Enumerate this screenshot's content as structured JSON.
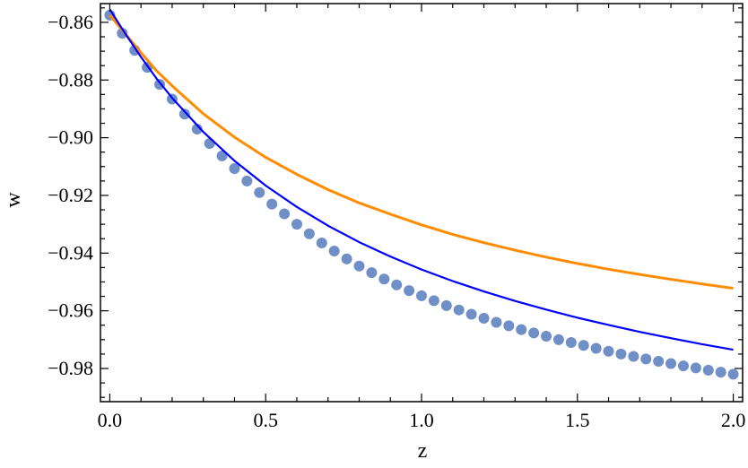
{
  "chart_data": {
    "type": "scatter",
    "xlabel": "z",
    "ylabel": "w",
    "xlim": [
      -0.03,
      2.03
    ],
    "ylim": [
      -0.9915,
      -0.8535
    ],
    "x_ticks": [
      0.0,
      0.5,
      1.0,
      1.5,
      2.0
    ],
    "x_tick_labels": [
      "0.0",
      "0.5",
      "1.0",
      "1.5",
      "2.0"
    ],
    "y_ticks": [
      -0.86,
      -0.88,
      -0.9,
      -0.92,
      -0.94,
      -0.96,
      -0.98
    ],
    "y_tick_labels": [
      "−0.86",
      "−0.88",
      "−0.90",
      "−0.92",
      "−0.94",
      "−0.96",
      "−0.98"
    ],
    "grid": false,
    "frame": true,
    "series": [
      {
        "style": "points",
        "color": "#6f8fc6",
        "x": [
          0.0,
          0.04,
          0.08,
          0.12,
          0.16,
          0.2,
          0.24,
          0.28,
          0.32,
          0.36,
          0.4,
          0.44,
          0.48,
          0.52,
          0.56,
          0.6,
          0.64,
          0.68,
          0.72,
          0.76,
          0.8,
          0.84,
          0.88,
          0.92,
          0.96,
          1.0,
          1.04,
          1.08,
          1.12,
          1.16,
          1.2,
          1.24,
          1.28,
          1.32,
          1.36,
          1.4,
          1.44,
          1.48,
          1.52,
          1.56,
          1.6,
          1.64,
          1.68,
          1.72,
          1.76,
          1.8,
          1.84,
          1.88,
          1.92,
          1.96,
          2.0
        ],
        "y": [
          -0.8575,
          -0.8638,
          -0.8697,
          -0.8756,
          -0.8815,
          -0.8866,
          -0.8918,
          -0.897,
          -0.902,
          -0.9063,
          -0.9107,
          -0.915,
          -0.919,
          -0.923,
          -0.9264,
          -0.93,
          -0.9333,
          -0.9365,
          -0.9393,
          -0.942,
          -0.9445,
          -0.9468,
          -0.949,
          -0.951,
          -0.953,
          -0.9548,
          -0.9565,
          -0.9582,
          -0.9597,
          -0.9612,
          -0.9626,
          -0.964,
          -0.9652,
          -0.9665,
          -0.9677,
          -0.9688,
          -0.97,
          -0.971,
          -0.972,
          -0.973,
          -0.974,
          -0.975,
          -0.9758,
          -0.9767,
          -0.9775,
          -0.9783,
          -0.9791,
          -0.9798,
          -0.9806,
          -0.9813,
          -0.982
        ]
      },
      {
        "style": "line",
        "color": "#ff8c00",
        "x": [
          0.0,
          0.05,
          0.1,
          0.15,
          0.2,
          0.3,
          0.4,
          0.5,
          0.6,
          0.7,
          0.8,
          0.9,
          1.0,
          1.1,
          1.2,
          1.3,
          1.4,
          1.5,
          1.6,
          1.7,
          1.8,
          1.9,
          2.0
        ],
        "y": [
          -0.8575,
          -0.864,
          -0.8705,
          -0.8768,
          -0.882,
          -0.8917,
          -0.8998,
          -0.9068,
          -0.9127,
          -0.918,
          -0.9226,
          -0.9265,
          -0.9302,
          -0.9335,
          -0.9364,
          -0.939,
          -0.9414,
          -0.9436,
          -0.9456,
          -0.9474,
          -0.9491,
          -0.9507,
          -0.9522
        ]
      },
      {
        "style": "line",
        "color": "#0000ff",
        "x": [
          0.0,
          0.05,
          0.1,
          0.15,
          0.2,
          0.3,
          0.4,
          0.5,
          0.6,
          0.7,
          0.8,
          0.9,
          1.0,
          1.1,
          1.2,
          1.3,
          1.4,
          1.5,
          1.6,
          1.7,
          1.8,
          1.9,
          2.0
        ],
        "y": [
          -0.8555,
          -0.864,
          -0.872,
          -0.8795,
          -0.8862,
          -0.898,
          -0.908,
          -0.9166,
          -0.924,
          -0.9305,
          -0.9362,
          -0.9412,
          -0.9457,
          -0.9497,
          -0.9533,
          -0.9566,
          -0.9596,
          -0.9624,
          -0.9649,
          -0.9673,
          -0.9695,
          -0.9716,
          -0.9735
        ]
      }
    ]
  }
}
